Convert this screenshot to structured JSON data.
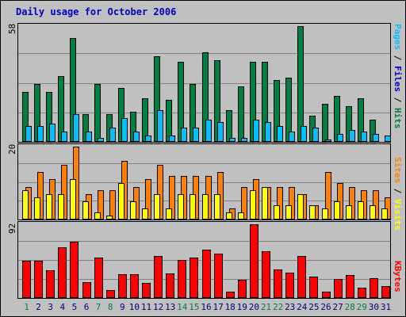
{
  "title": "Daily usage for October 2006",
  "colors": {
    "hits": "#008040",
    "files": "#00c0ff",
    "pages": "#00c0ff",
    "visits": "#ffff00",
    "sites": "#ff8000",
    "kbytes": "#ff0000",
    "weekday": "#008040",
    "weekend": "#000080",
    "title": "#0000c0"
  },
  "axis_max": {
    "hits": "58",
    "visits": "20",
    "kbytes": "92"
  },
  "labels": {
    "hits": "Hits",
    "files": "Files",
    "pages": "Pages",
    "visits": "Visits",
    "sites": "Sites",
    "kbytes": "KBytes",
    "sep1": " / ",
    "sep2": " / ",
    "sep3": " / "
  },
  "chart_data": [
    {
      "type": "bar",
      "title": "Daily usage for October 2006",
      "categories": [
        "1",
        "2",
        "3",
        "4",
        "5",
        "6",
        "7",
        "8",
        "9",
        "10",
        "11",
        "12",
        "13",
        "14",
        "15",
        "16",
        "17",
        "18",
        "19",
        "20",
        "21",
        "22",
        "23",
        "24",
        "25",
        "26",
        "27",
        "28",
        "29",
        "30",
        "31"
      ],
      "ylim": [
        0,
        58
      ],
      "series": [
        {
          "name": "Hits",
          "values": [
            25,
            29,
            25,
            33,
            52,
            14,
            29,
            14,
            27,
            15,
            22,
            43,
            21,
            40,
            29,
            45,
            41,
            16,
            28,
            40,
            40,
            31,
            32,
            58,
            13,
            19,
            23,
            18,
            22,
            11,
            0
          ]
        },
        {
          "name": "Files",
          "values": [
            8,
            8,
            9,
            5,
            14,
            5,
            2,
            7,
            12,
            5,
            3,
            16,
            3,
            7,
            7,
            11,
            10,
            2,
            2,
            11,
            10,
            8,
            5,
            8,
            7,
            1,
            4,
            6,
            5,
            4,
            3
          ]
        },
        {
          "name": "Pages",
          "values": [
            8,
            8,
            9,
            5,
            14,
            5,
            2,
            7,
            12,
            5,
            3,
            16,
            3,
            7,
            7,
            11,
            10,
            2,
            2,
            11,
            10,
            8,
            5,
            8,
            7,
            1,
            4,
            6,
            5,
            4,
            3
          ]
        }
      ]
    },
    {
      "type": "bar",
      "categories": [
        "1",
        "2",
        "3",
        "4",
        "5",
        "6",
        "7",
        "8",
        "9",
        "10",
        "11",
        "12",
        "13",
        "14",
        "15",
        "16",
        "17",
        "18",
        "19",
        "20",
        "21",
        "22",
        "23",
        "24",
        "25",
        "26",
        "27",
        "28",
        "29",
        "30",
        "31"
      ],
      "ylim": [
        0,
        20
      ],
      "series": [
        {
          "name": "Visits",
          "values": [
            8,
            6,
            7,
            7,
            11,
            5,
            2,
            1,
            10,
            5,
            3,
            7,
            3,
            7,
            7,
            7,
            7,
            2,
            2,
            8,
            9,
            4,
            4,
            7,
            4,
            3,
            5,
            4,
            5,
            4,
            3
          ]
        },
        {
          "name": "Sites",
          "values": [
            9,
            13,
            11,
            15,
            20,
            7,
            8,
            8,
            16,
            9,
            11,
            15,
            12,
            12,
            12,
            12,
            13,
            3,
            9,
            11,
            9,
            9,
            9,
            7,
            4,
            13,
            10,
            9,
            8,
            8,
            6
          ]
        }
      ]
    },
    {
      "type": "bar",
      "categories": [
        "1",
        "2",
        "3",
        "4",
        "5",
        "6",
        "7",
        "8",
        "9",
        "10",
        "11",
        "12",
        "13",
        "14",
        "15",
        "16",
        "17",
        "18",
        "19",
        "20",
        "21",
        "22",
        "23",
        "24",
        "25",
        "26",
        "27",
        "28",
        "29",
        "30",
        "31"
      ],
      "ylim": [
        0,
        92
      ],
      "series": [
        {
          "name": "KBytes",
          "values": [
            46,
            46,
            35,
            63,
            70,
            20,
            50,
            10,
            30,
            30,
            19,
            52,
            31,
            47,
            50,
            60,
            55,
            8,
            23,
            92,
            58,
            36,
            32,
            52,
            27,
            8,
            24,
            29,
            13,
            25,
            15
          ]
        }
      ]
    }
  ],
  "weekend_days": [
    "1",
    "7",
    "8",
    "14",
    "15",
    "21",
    "22",
    "28",
    "29"
  ]
}
